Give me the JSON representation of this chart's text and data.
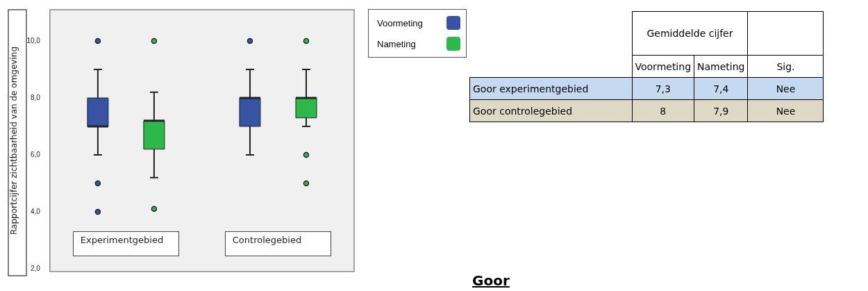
{
  "chart_data": [
    {
      "type": "box",
      "ylabel": "Rapportcijfer zichtbaarheid van de omgeving",
      "categories": [
        "Experimentgebied",
        "Controlegebied"
      ],
      "ylim": [
        1.9,
        11.1
      ],
      "yticks": [
        {
          "value": 2,
          "label": "2,0"
        },
        {
          "value": 4,
          "label": "4,0"
        },
        {
          "value": 6,
          "label": "6,0"
        },
        {
          "value": 8,
          "label": "8,0"
        },
        {
          "value": 10,
          "label": "10,0"
        }
      ],
      "grid": false,
      "legend": "top right",
      "series": [
        {
          "name": "Voormeting",
          "color": "#3953a4",
          "boxes": [
            {
              "low": 6,
              "q1": 7,
              "median": 7,
              "q3": 8,
              "high": 9,
              "outliers": [
                10,
                5,
                4
              ]
            },
            {
              "low": 6,
              "q1": 7,
              "median": 8,
              "q3": 8,
              "high": 9,
              "outliers": [
                10
              ]
            }
          ]
        },
        {
          "name": "Nameting",
          "color": "#2db84a",
          "boxes": [
            {
              "low": 5.2,
              "q1": 6.2,
              "median": 7.2,
              "q3": 7.2,
              "high": 8.2,
              "outliers": [
                10,
                4.1
              ]
            },
            {
              "low": 7,
              "q1": 7.3,
              "median": 8,
              "q3": 8,
              "high": 9,
              "outliers": [
                10,
                6,
                5
              ]
            }
          ]
        }
      ]
    },
    {
      "type": "other",
      "title": "Gemiddelde cijfer",
      "categories": [
        "Voormeting",
        "Nameting",
        "Sig."
      ],
      "y_categories": [
        "Goor experimentgebied",
        "Goor controlegebied"
      ],
      "colors": [
        "#c5d9f1",
        "#ddd9c4"
      ],
      "cell_labels": [
        [
          "7,3",
          "7,4",
          "Nee"
        ],
        [
          "8",
          "7,9",
          "Nee"
        ]
      ],
      "annotations": [
        "Goor"
      ]
    }
  ]
}
